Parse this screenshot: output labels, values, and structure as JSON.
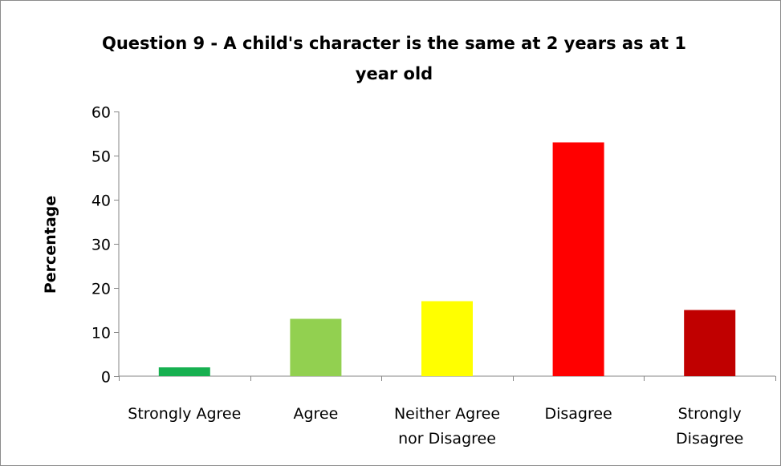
{
  "chart_data": {
    "type": "bar",
    "title": "Question 9 - A child's character is the same at 2 years as at 1 year old",
    "title_lines": [
      "Question 9 - A child's character is the same at 2 years as at 1",
      "year old"
    ],
    "xlabel": "",
    "ylabel": "Percentage",
    "ylim": [
      0,
      60
    ],
    "yticks": [
      "0",
      "10",
      "20",
      "30",
      "40",
      "50",
      "60"
    ],
    "grid": false,
    "categories": [
      {
        "label": "Strongly Agree",
        "lines": [
          "Strongly Agree"
        ]
      },
      {
        "label": "Agree",
        "lines": [
          "Agree"
        ]
      },
      {
        "label": "Neither Agree nor Disagree",
        "lines": [
          "Neither Agree",
          "nor Disagree"
        ]
      },
      {
        "label": "Disagree",
        "lines": [
          "Disagree"
        ]
      },
      {
        "label": "Strongly Disagree",
        "lines": [
          "Strongly",
          "Disagree"
        ]
      }
    ],
    "values": [
      2,
      13,
      17,
      53,
      15
    ],
    "colors": [
      "#17b050",
      "#92d050",
      "#ffff00",
      "#ff0000",
      "#c00000"
    ]
  }
}
